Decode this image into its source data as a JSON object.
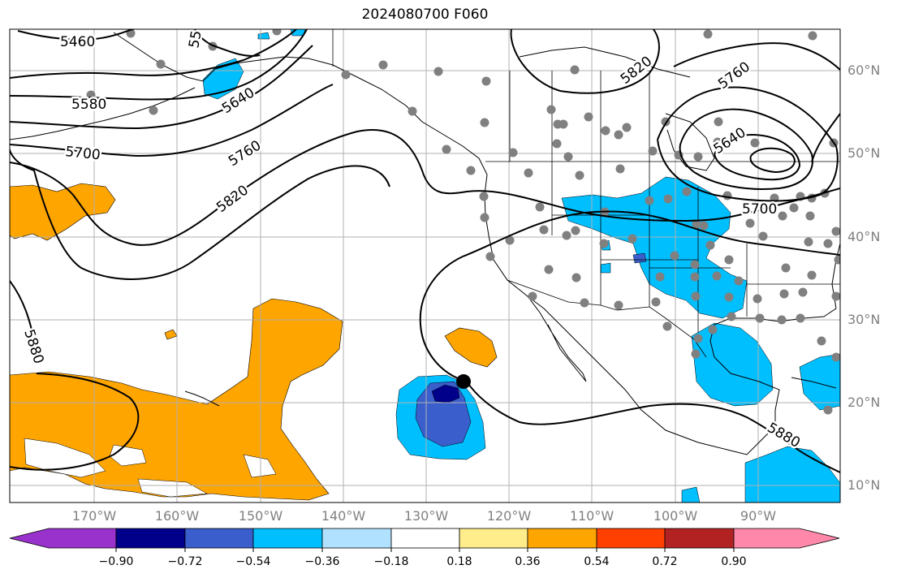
{
  "title": "2024080700 F060",
  "lat_labels": [
    "60°N",
    "50°N",
    "40°N",
    "30°N",
    "20°N",
    "10°N"
  ],
  "lon_labels": [
    "170°W",
    "160°W",
    "150°W",
    "140°W",
    "130°W",
    "120°W",
    "110°W",
    "100°W",
    "90°W"
  ],
  "contour_labels": [
    "5460",
    "5580",
    "5640",
    "5700",
    "5760",
    "5820",
    "5880",
    "5820",
    "5760",
    "5640",
    "5700",
    "5880",
    "55"
  ],
  "colorbar": {
    "ticks": [
      "−0.90",
      "−0.72",
      "−0.54",
      "−0.36",
      "−0.18",
      "0.18",
      "0.36",
      "0.54",
      "0.72",
      "0.90"
    ],
    "colors": [
      "#9932cc",
      "#00008b",
      "#3a5fcd",
      "#00bfff",
      "#b0e2ff",
      "#ffffff",
      "#ffec8b",
      "#ffa500",
      "#ff4000",
      "#b22222",
      "#ff88aa"
    ]
  },
  "colors": {
    "positive_fill": "#ffa500",
    "neg_light": "#00bfff",
    "neg_mid": "#3a5fcd",
    "neg_dark": "#00008b",
    "station_dot": "#808080",
    "grid": "#b0b0b0"
  }
}
